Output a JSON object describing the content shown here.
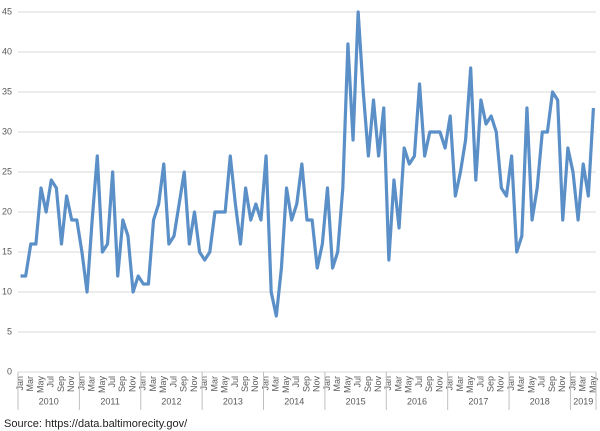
{
  "chart_data": {
    "type": "line",
    "categories": [
      "Jan",
      null,
      "Mar",
      null,
      "May",
      null,
      "Jul",
      null,
      "Sep",
      null,
      "Nov",
      null,
      "Jan",
      null,
      "Mar",
      null,
      "May",
      null,
      "Jul",
      null,
      "Sep",
      null,
      "Nov",
      null,
      "Jan",
      null,
      "Mar",
      null,
      "May",
      null,
      "Jul",
      null,
      "Sep",
      null,
      "Nov",
      null,
      "Jan",
      null,
      "Mar",
      null,
      "May",
      null,
      "Jul",
      null,
      "Sep",
      null,
      "Nov",
      null,
      "Jan",
      null,
      "Mar",
      null,
      "May",
      null,
      "Jul",
      null,
      "Sep",
      null,
      "Nov",
      null,
      "Jan",
      null,
      "Mar",
      null,
      "May",
      null,
      "Jul",
      null,
      "Sep",
      null,
      "Nov",
      null,
      "Jan",
      null,
      "Mar",
      null,
      "May",
      null,
      "Jul",
      null,
      "Sep",
      null,
      "Nov",
      null,
      "Jan",
      null,
      "Mar",
      null,
      "May",
      null,
      "Jul",
      null,
      "Sep",
      null,
      "Nov",
      null,
      "Jan",
      null,
      "Mar",
      null,
      "May",
      null,
      "Jul",
      null,
      "Sep",
      null,
      "Nov",
      null,
      "Jan",
      null,
      "Mar",
      null,
      "May"
    ],
    "groups": [
      {
        "label": "2010",
        "count": 12
      },
      {
        "label": "2011",
        "count": 12
      },
      {
        "label": "2012",
        "count": 12
      },
      {
        "label": "2013",
        "count": 12
      },
      {
        "label": "2014",
        "count": 12
      },
      {
        "label": "2015",
        "count": 12
      },
      {
        "label": "2016",
        "count": 12
      },
      {
        "label": "2017",
        "count": 12
      },
      {
        "label": "2018",
        "count": 12
      },
      {
        "label": "2019",
        "count": 5
      }
    ],
    "values": [
      12,
      12,
      16,
      16,
      23,
      20,
      24,
      23,
      16,
      22,
      19,
      19,
      15,
      10,
      19,
      27,
      15,
      16,
      25,
      12,
      19,
      17,
      10,
      12,
      11,
      11,
      19,
      21,
      26,
      16,
      17,
      21,
      25,
      16,
      20,
      15,
      14,
      15,
      20,
      20,
      20,
      27,
      21,
      16,
      23,
      19,
      21,
      19,
      27,
      10,
      7,
      13,
      23,
      19,
      21,
      26,
      19,
      19,
      13,
      16,
      23,
      13,
      15,
      23,
      41,
      29,
      45,
      35,
      27,
      34,
      27,
      33,
      14,
      24,
      18,
      28,
      26,
      27,
      36,
      27,
      30,
      30,
      30,
      28,
      32,
      22,
      25,
      29,
      38,
      24,
      34,
      31,
      32,
      30,
      23,
      22,
      27,
      15,
      17,
      33,
      19,
      23,
      30,
      30,
      35,
      34,
      19,
      28,
      25,
      19,
      26,
      22,
      33
    ],
    "color": "#5b8fc7",
    "ylim": [
      0,
      45
    ],
    "yticks": [
      0,
      5,
      10,
      15,
      20,
      25,
      30,
      35,
      40,
      45
    ],
    "grid": true,
    "source": "Source: https://data.baltimorecity.gov/"
  }
}
